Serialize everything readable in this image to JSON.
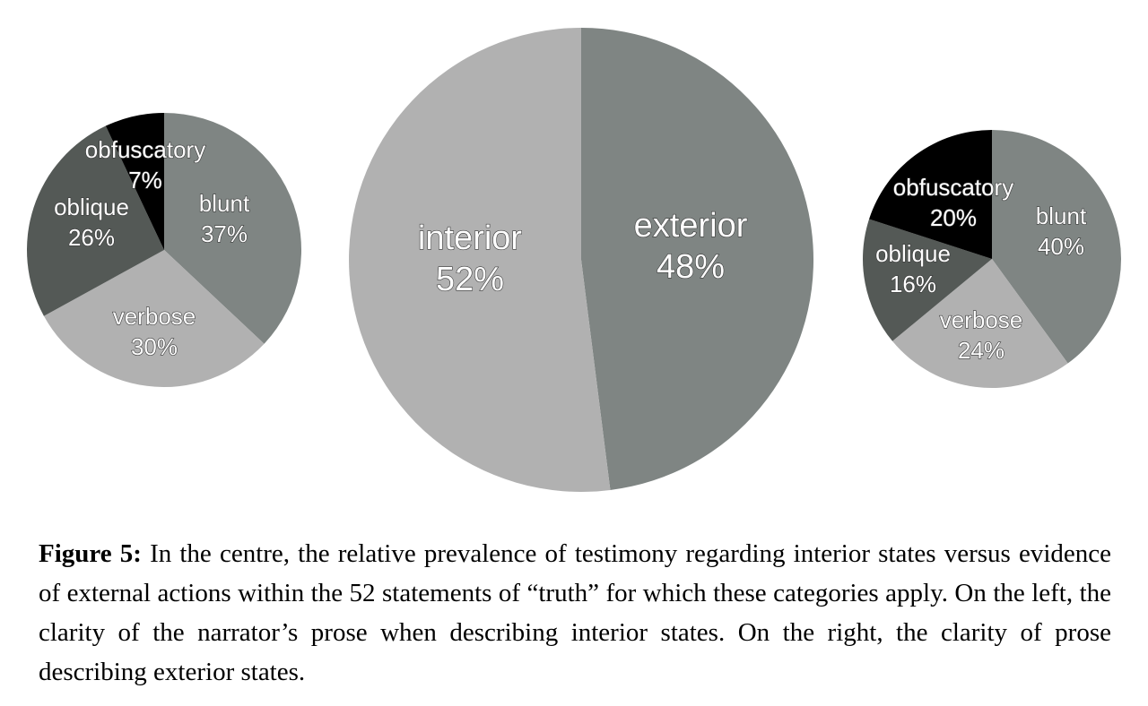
{
  "chart_data": [
    {
      "type": "pie",
      "slices": [
        {
          "label": "blunt",
          "value": 37,
          "value_label": "37%",
          "color": "#7f8583"
        },
        {
          "label": "verbose",
          "value": 30,
          "value_label": "30%",
          "color": "#b1b1b1"
        },
        {
          "label": "oblique",
          "value": 26,
          "value_label": "26%",
          "color": "#545956"
        },
        {
          "label": "obfuscatory",
          "value": 7,
          "value_label": "7%",
          "color": "#000000"
        }
      ]
    },
    {
      "type": "pie",
      "slices": [
        {
          "label": "exterior",
          "value": 48,
          "value_label": "48%",
          "color": "#7f8583"
        },
        {
          "label": "interior",
          "value": 52,
          "value_label": "52%",
          "color": "#b1b1b1"
        }
      ]
    },
    {
      "type": "pie",
      "slices": [
        {
          "label": "blunt",
          "value": 40,
          "value_label": "40%",
          "color": "#7f8583"
        },
        {
          "label": "verbose",
          "value": 24,
          "value_label": "24%",
          "color": "#b1b1b1"
        },
        {
          "label": "oblique",
          "value": 16,
          "value_label": "16%",
          "color": "#545956"
        },
        {
          "label": "obfuscatory",
          "value": 20,
          "value_label": "20%",
          "color": "#000000"
        }
      ]
    }
  ],
  "caption": {
    "label": "Figure 5:",
    "text": "In the centre, the relative prevalence of testimony regarding interior states versus evidence of external actions within the 52 statements of “truth” for which these categories apply. On the left, the clarity of the narrator’s prose when describing interior states. On the right, the clarity of prose describing exterior states."
  }
}
